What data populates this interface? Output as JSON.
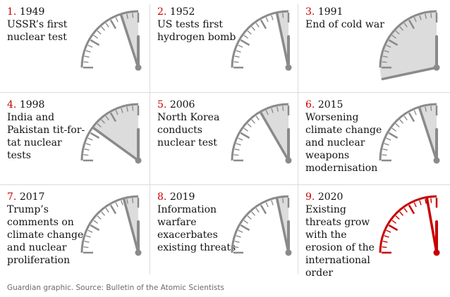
{
  "colors": {
    "normal": "#8a8a8a",
    "fill": "#dcdcdc",
    "highlight": "#c70000",
    "text": "#121212",
    "number": "#c70000"
  },
  "panels": [
    {
      "number": "1.",
      "year": "1949",
      "text": "USSR’s first nuclear test",
      "minutes_to_midnight": 3,
      "highlight": false
    },
    {
      "number": "2.",
      "year": "1952",
      "text": "US tests first hydrogen bomb",
      "minutes_to_midnight": 2,
      "highlight": false
    },
    {
      "number": "3.",
      "year": "1991",
      "text": "End of cold war",
      "minutes_to_midnight": 17,
      "highlight": false
    },
    {
      "number": "4.",
      "year": "1998",
      "text": "India and Pakistan tit-for-tat nuclear tests",
      "minutes_to_midnight": 9,
      "highlight": false
    },
    {
      "number": "5.",
      "year": "2006",
      "text": "North Korea conducts nuclear test",
      "minutes_to_midnight": 5,
      "highlight": false
    },
    {
      "number": "6.",
      "year": "2015",
      "text": "Worsening climate change and nuclear weapons modernisation",
      "minutes_to_midnight": 3,
      "highlight": false
    },
    {
      "number": "7.",
      "year": "2017",
      "text": "Trump’s comments on climate change and nuclear proliferation",
      "minutes_to_midnight": 2.5,
      "highlight": false
    },
    {
      "number": "8.",
      "year": "2019",
      "text": "Information warfare exacerbates existing threats",
      "minutes_to_midnight": 2,
      "highlight": false
    },
    {
      "number": "9.",
      "year": "2020",
      "text": "Existing threats grow with the erosion of the international order",
      "minutes_to_midnight": 1.67,
      "highlight": true
    }
  ],
  "caption": "Guardian graphic. Source: Bulletin of the Atomic Scientists"
}
